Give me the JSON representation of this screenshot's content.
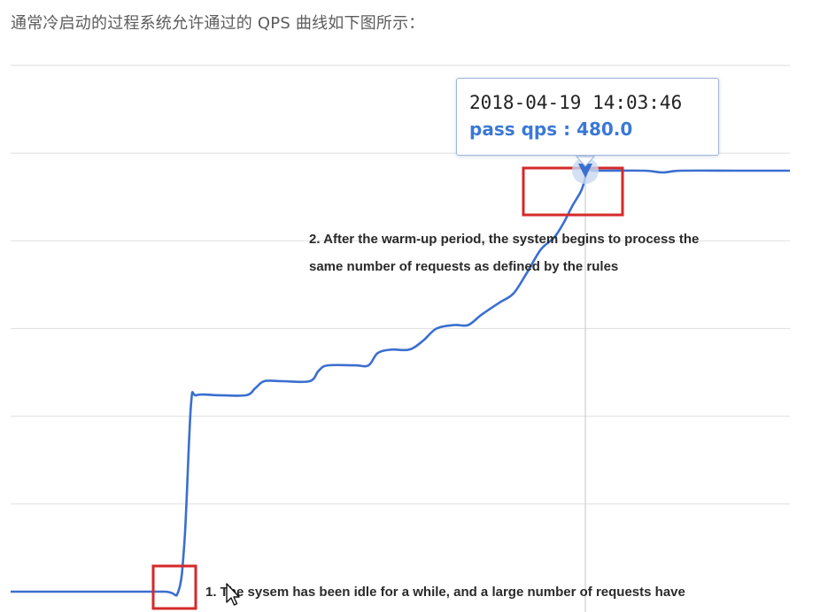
{
  "intro_text": "通常冷启动的过程系统允许通过的 QPS 曲线如下图所示：",
  "tooltip": {
    "time": "2018-04-19 14:03:46",
    "qps_label": "pass qps",
    "qps_value": "480.0"
  },
  "annotations": {
    "note2_line1": "2. After the warm-up period, the system begins to process the",
    "note2_line2": "same number of requests as defined by the rules",
    "note1_line1": "1. The sysem has been idle for a while, and a large number of requests have"
  },
  "colors": {
    "line": "#3a6fd0",
    "highlight_box": "#d42a2a",
    "grid": "#e2e2e2",
    "crosshair": "#cfcfcf"
  },
  "chart_data": {
    "type": "line",
    "title": "",
    "xlabel": "",
    "ylabel": "",
    "grid": true,
    "ylim": [
      0,
      600
    ],
    "highlight": {
      "time": "2018-04-19 14:03:46",
      "pass_qps": 480.0
    },
    "series": [
      {
        "points": [
          [
            0,
            0
          ],
          [
            10,
            0
          ],
          [
            17,
            0
          ],
          [
            18.5,
            0
          ],
          [
            19.2,
            60
          ],
          [
            19.9,
            212
          ],
          [
            20.5,
            224
          ],
          [
            23,
            224
          ],
          [
            26,
            224
          ],
          [
            27,
            232
          ],
          [
            28,
            240
          ],
          [
            30,
            240
          ],
          [
            33,
            240
          ],
          [
            34,
            252
          ],
          [
            35,
            258
          ],
          [
            38,
            258
          ],
          [
            39.5,
            258
          ],
          [
            40.5,
            272
          ],
          [
            42,
            276
          ],
          [
            44,
            276
          ],
          [
            45.5,
            286
          ],
          [
            47,
            300
          ],
          [
            49,
            304
          ],
          [
            50.5,
            304
          ],
          [
            52,
            316
          ],
          [
            54,
            330
          ],
          [
            55.5,
            340
          ],
          [
            57,
            364
          ],
          [
            58.5,
            390
          ],
          [
            60,
            404
          ],
          [
            61,
            420
          ],
          [
            62,
            440
          ],
          [
            63,
            458
          ],
          [
            63.7,
            480
          ],
          [
            64.3,
            480
          ],
          [
            66,
            480
          ],
          [
            70,
            480
          ],
          [
            72,
            478
          ],
          [
            74,
            480
          ],
          [
            80,
            480
          ],
          [
            84,
            480
          ],
          [
            86,
            480
          ]
        ]
      }
    ]
  }
}
